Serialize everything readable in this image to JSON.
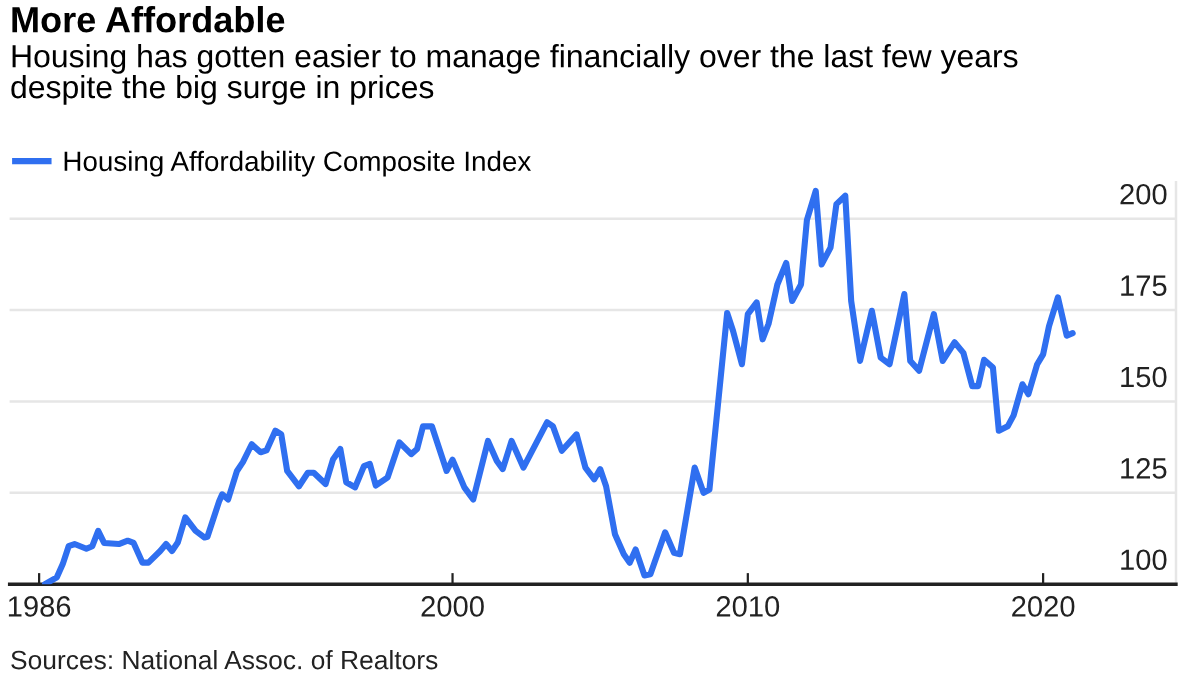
{
  "chart_data": {
    "type": "line",
    "title": "More Affordable",
    "subtitle": "Housing has gotten easier to manage financially over the last few years\ndespite the big surge in prices",
    "annotations": [
      "Sources: National Assoc. of Realtors"
    ],
    "x": [
      1986.2,
      1986.6,
      1986.8,
      1987.0,
      1987.2,
      1987.6,
      1987.8,
      1988.0,
      1988.2,
      1988.7,
      1989.0,
      1989.2,
      1989.5,
      1989.7,
      1990.1,
      1990.3,
      1990.5,
      1990.7,
      1990.95,
      1991.3,
      1991.6,
      1991.7,
      1992.1,
      1992.2,
      1992.4,
      1992.7,
      1992.9,
      1993.2,
      1993.5,
      1993.7,
      1994.0,
      1994.2,
      1994.4,
      1994.8,
      1995.1,
      1995.3,
      1995.7,
      1995.95,
      1996.2,
      1996.4,
      1996.7,
      1997.0,
      1997.2,
      1997.4,
      1997.8,
      1998.2,
      1998.6,
      1998.8,
      1999.0,
      1999.3,
      1999.8,
      2000.0,
      2000.4,
      2000.7,
      2001.2,
      2001.5,
      2001.7,
      2002.0,
      2002.4,
      2003.2,
      2003.4,
      2003.7,
      2004.2,
      2004.5,
      2004.8,
      2005.0,
      2005.2,
      2005.5,
      2005.8,
      2006.0,
      2006.2,
      2006.5,
      2006.7,
      2007.2,
      2007.5,
      2007.7,
      2008.2,
      2008.5,
      2008.7,
      2009.3,
      2009.5,
      2009.8,
      2010.0,
      2010.3,
      2010.5,
      2010.7,
      2011.0,
      2011.3,
      2011.5,
      2011.8,
      2012.0,
      2012.3,
      2012.5,
      2012.8,
      2013.0,
      2013.3,
      2013.5,
      2013.8,
      2014.2,
      2014.5,
      2014.8,
      2015.3,
      2015.5,
      2015.8,
      2016.3,
      2016.6,
      2017.0,
      2017.3,
      2017.6,
      2017.8,
      2018.0,
      2018.3,
      2018.5,
      2018.8,
      2019.0,
      2019.3,
      2019.5,
      2019.8,
      2020.0,
      2020.2,
      2020.5,
      2020.8,
      2021.0
    ],
    "series": [
      {
        "name": "Housing Affordability Composite Index",
        "color": "#2f6ff0",
        "values": [
          100,
          101.9,
          105.5,
          110.4,
          111,
          109.7,
          110.4,
          114.6,
          111.3,
          111,
          111.9,
          111.3,
          105.9,
          105.9,
          109.1,
          111,
          109.1,
          111.5,
          118.3,
          114.6,
          112.8,
          113,
          122.8,
          124.6,
          123.2,
          131,
          133.4,
          138.3,
          136.1,
          136.6,
          142,
          141,
          131,
          126.8,
          130.5,
          130.5,
          127.4,
          134.1,
          137,
          127.9,
          126.5,
          132.3,
          132.9,
          127,
          129.2,
          138.8,
          135.6,
          137,
          143.2,
          143.2,
          131,
          134.1,
          126.5,
          123.2,
          139.2,
          133.7,
          131.5,
          139.2,
          131.9,
          144.3,
          143.2,
          136.5,
          141,
          131.9,
          128.7,
          131.5,
          126.8,
          113.7,
          108.2,
          105.9,
          109.5,
          102.4,
          102.7,
          114.2,
          108.6,
          108.2,
          131.9,
          125,
          125.9,
          174.2,
          169.3,
          160.2,
          173.9,
          177.1,
          167,
          171.2,
          182,
          187.9,
          177.5,
          182,
          199.6,
          207.6,
          187.5,
          192.1,
          204,
          206.3,
          177.5,
          161.1,
          174.8,
          162,
          160.2,
          179.4,
          161.1,
          158.4,
          173.9,
          161.1,
          166.2,
          163.3,
          154.2,
          154.2,
          161.4,
          159.3,
          142,
          143.2,
          146.2,
          154.7,
          152,
          160.2,
          162.9,
          170.6,
          178.5,
          168,
          168.7
        ]
      }
    ],
    "xlim": [
      1985,
      2024.5
    ],
    "xticks": [
      1986,
      2000,
      2010,
      2020
    ],
    "ylim": [
      100,
      210
    ],
    "yticks": [
      100,
      125,
      150,
      175,
      200
    ],
    "grid": "y",
    "legend": "top left",
    "marker": "none",
    "line_style": "solid"
  }
}
